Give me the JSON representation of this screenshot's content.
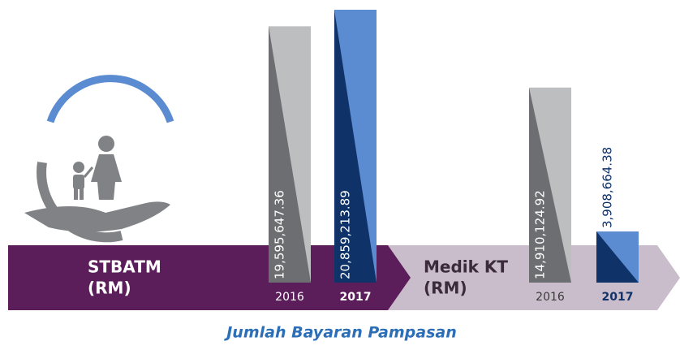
{
  "chart_data": {
    "type": "bar",
    "title": "Jumlah Bayaran Pampasan",
    "series_colors": [
      {
        "light": "#bcbec0",
        "dark": "#6d6e71"
      },
      {
        "light": "#5b8bd0",
        "dark": "#0f3268"
      }
    ],
    "groups": [
      {
        "label": [
          "STBATM",
          "(RM)"
        ],
        "categories": [
          "2016",
          "2017"
        ],
        "values": [
          19595647.36,
          20859213.89
        ],
        "value_labels": [
          "19,595,647.36",
          "20,859,213.89"
        ]
      },
      {
        "label": [
          "Medik KT",
          "(RM)"
        ],
        "categories": [
          "2016",
          "2017"
        ],
        "values": [
          14910124.92,
          3908664.38
        ],
        "value_labels": [
          "14,910,124.92",
          "3,908,664.38"
        ]
      }
    ]
  }
}
